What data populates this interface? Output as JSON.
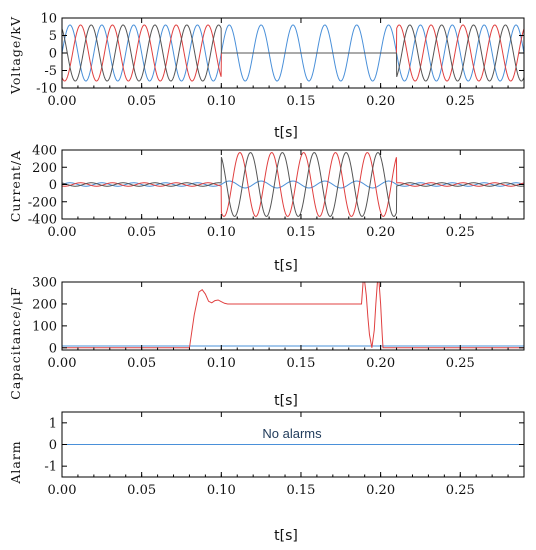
{
  "chart_data": [
    {
      "type": "line",
      "title": "",
      "xlabel": "t[s]",
      "ylabel": "Voltage/kV",
      "xlim": [
        0,
        0.29
      ],
      "ylim": [
        -10,
        10
      ],
      "x_ticks": [
        "0.00",
        "0.05",
        "0.10",
        "0.15",
        "0.20",
        "0.25"
      ],
      "y_ticks": [
        "10",
        "5",
        "0",
        "-5",
        "-10"
      ],
      "grid": false,
      "series": [
        {
          "color": "#4a90d9",
          "amplitude": 8.0,
          "frequency_hz": 50,
          "phase_deg": 0,
          "segments": [
            {
              "t_start": 0.0,
              "t_end": 0.29,
              "amplitude": 8.0
            }
          ]
        },
        {
          "color": "#e04040",
          "amplitude": 8.0,
          "frequency_hz": 50,
          "phase_deg": -120,
          "segments": [
            {
              "t_start": 0.0,
              "t_end": 0.1,
              "amplitude": 8.0
            },
            {
              "t_start": 0.1,
              "t_end": 0.21,
              "amplitude": 0.0
            },
            {
              "t_start": 0.21,
              "t_end": 0.29,
              "amplitude": 8.0
            }
          ]
        },
        {
          "color": "#555555",
          "amplitude": 8.0,
          "frequency_hz": 50,
          "phase_deg": 120,
          "segments": [
            {
              "t_start": 0.0,
              "t_end": 0.1,
              "amplitude": 8.0
            },
            {
              "t_start": 0.1,
              "t_end": 0.21,
              "amplitude": 0.0
            },
            {
              "t_start": 0.21,
              "t_end": 0.29,
              "amplitude": 8.0
            }
          ]
        }
      ]
    },
    {
      "type": "line",
      "title": "",
      "xlabel": "t[s]",
      "ylabel": "Current/A",
      "xlim": [
        0,
        0.29
      ],
      "ylim": [
        -400,
        400
      ],
      "x_ticks": [
        "0.00",
        "0.05",
        "0.10",
        "0.15",
        "0.20",
        "0.25"
      ],
      "y_ticks": [
        "400",
        "200",
        "0",
        "-200",
        "-400"
      ],
      "grid": false,
      "series": [
        {
          "color": "#4a90d9",
          "frequency_hz": 50,
          "phase_deg": 0,
          "segments": [
            {
              "t_start": 0.0,
              "t_end": 0.1,
              "amplitude": 20
            },
            {
              "t_start": 0.1,
              "t_end": 0.21,
              "amplitude": 40
            },
            {
              "t_start": 0.21,
              "t_end": 0.29,
              "amplitude": 20
            }
          ]
        },
        {
          "color": "#e04040",
          "frequency_hz": 50,
          "phase_deg": -120,
          "segments": [
            {
              "t_start": 0.0,
              "t_end": 0.1,
              "amplitude": 20
            },
            {
              "t_start": 0.1,
              "t_end": 0.21,
              "amplitude": 370
            },
            {
              "t_start": 0.21,
              "t_end": 0.29,
              "amplitude": 20
            }
          ]
        },
        {
          "color": "#555555",
          "frequency_hz": 50,
          "phase_deg": 120,
          "segments": [
            {
              "t_start": 0.0,
              "t_end": 0.1,
              "amplitude": 20
            },
            {
              "t_start": 0.1,
              "t_end": 0.21,
              "amplitude": 370
            },
            {
              "t_start": 0.21,
              "t_end": 0.29,
              "amplitude": 20
            }
          ]
        }
      ]
    },
    {
      "type": "line",
      "title": "",
      "xlabel": "t[s]",
      "ylabel": "Capacitance/μF",
      "xlim": [
        0,
        0.29
      ],
      "ylim": [
        -10,
        300
      ],
      "x_ticks": [
        "0.00",
        "0.05",
        "0.10",
        "0.15",
        "0.20",
        "0.25"
      ],
      "y_ticks": [
        "300",
        "200",
        "100",
        "0"
      ],
      "grid": false,
      "series": [
        {
          "color": "#4a90d9",
          "points": [
            [
              0.0,
              8
            ],
            [
              0.29,
              8
            ]
          ]
        },
        {
          "color": "#e04040",
          "points": [
            [
              0.0,
              0
            ],
            [
              0.08,
              0
            ],
            [
              0.083,
              150
            ],
            [
              0.086,
              255
            ],
            [
              0.088,
              265
            ],
            [
              0.09,
              245
            ],
            [
              0.092,
              212
            ],
            [
              0.094,
              205
            ],
            [
              0.096,
              215
            ],
            [
              0.098,
              218
            ],
            [
              0.1,
              210
            ],
            [
              0.102,
              203
            ],
            [
              0.104,
              200
            ],
            [
              0.188,
              200
            ],
            [
              0.189,
              300
            ],
            [
              0.19,
              300
            ],
            [
              0.191,
              240
            ],
            [
              0.192,
              140
            ],
            [
              0.193,
              60
            ],
            [
              0.1945,
              0
            ],
            [
              0.196,
              80
            ],
            [
              0.197,
              200
            ],
            [
              0.198,
              300
            ],
            [
              0.199,
              300
            ],
            [
              0.2,
              200
            ],
            [
              0.201,
              60
            ],
            [
              0.2015,
              0
            ],
            [
              0.29,
              0
            ]
          ]
        }
      ]
    },
    {
      "type": "line",
      "title": "",
      "xlabel": "t[s]",
      "ylabel": "Alarm",
      "xlim": [
        0,
        0.29
      ],
      "ylim": [
        -1.5,
        1.5
      ],
      "x_ticks": [
        "0.00",
        "0.05",
        "0.10",
        "0.15",
        "0.20",
        "0.25"
      ],
      "y_ticks": [
        "1",
        "0",
        "-1"
      ],
      "grid": false,
      "annotation": "No alarms",
      "series": [
        {
          "color": "#4a90d9",
          "points": [
            [
              0.0,
              0
            ],
            [
              0.29,
              0
            ]
          ]
        }
      ]
    }
  ]
}
